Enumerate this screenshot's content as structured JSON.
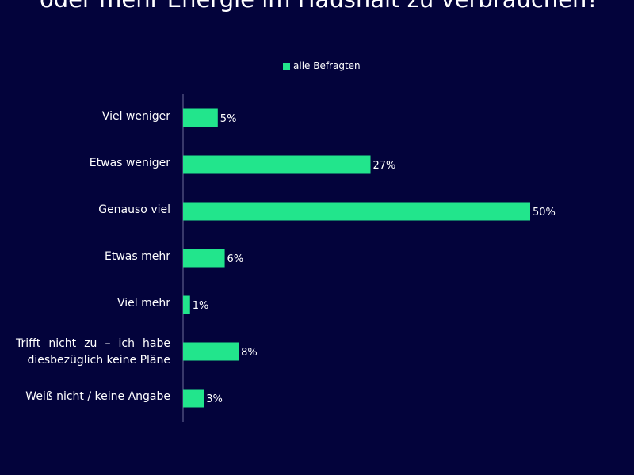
{
  "title": "oder mehr Energie im Haushalt zu verbrauchen?",
  "chart_data": {
    "type": "bar",
    "orientation": "horizontal",
    "categories": [
      "Viel weniger",
      "Etwas weniger",
      "Genauso viel",
      "Etwas mehr",
      "Viel mehr",
      "Trifft nicht zu – ich habe diesbezüglich keine Pläne",
      "Weiß nicht / keine Angabe"
    ],
    "series": [
      {
        "name": "alle Befragten",
        "values": [
          5,
          27,
          50,
          6,
          1,
          8,
          3
        ],
        "color": "#22e58c"
      }
    ],
    "data_labels": [
      "5%",
      "27%",
      "50%",
      "6%",
      "1%",
      "8%",
      "3%"
    ],
    "unit": "%",
    "legend": "top-center",
    "grid": false
  },
  "colors": {
    "background": "#03033b",
    "bar": "#22e58c"
  }
}
